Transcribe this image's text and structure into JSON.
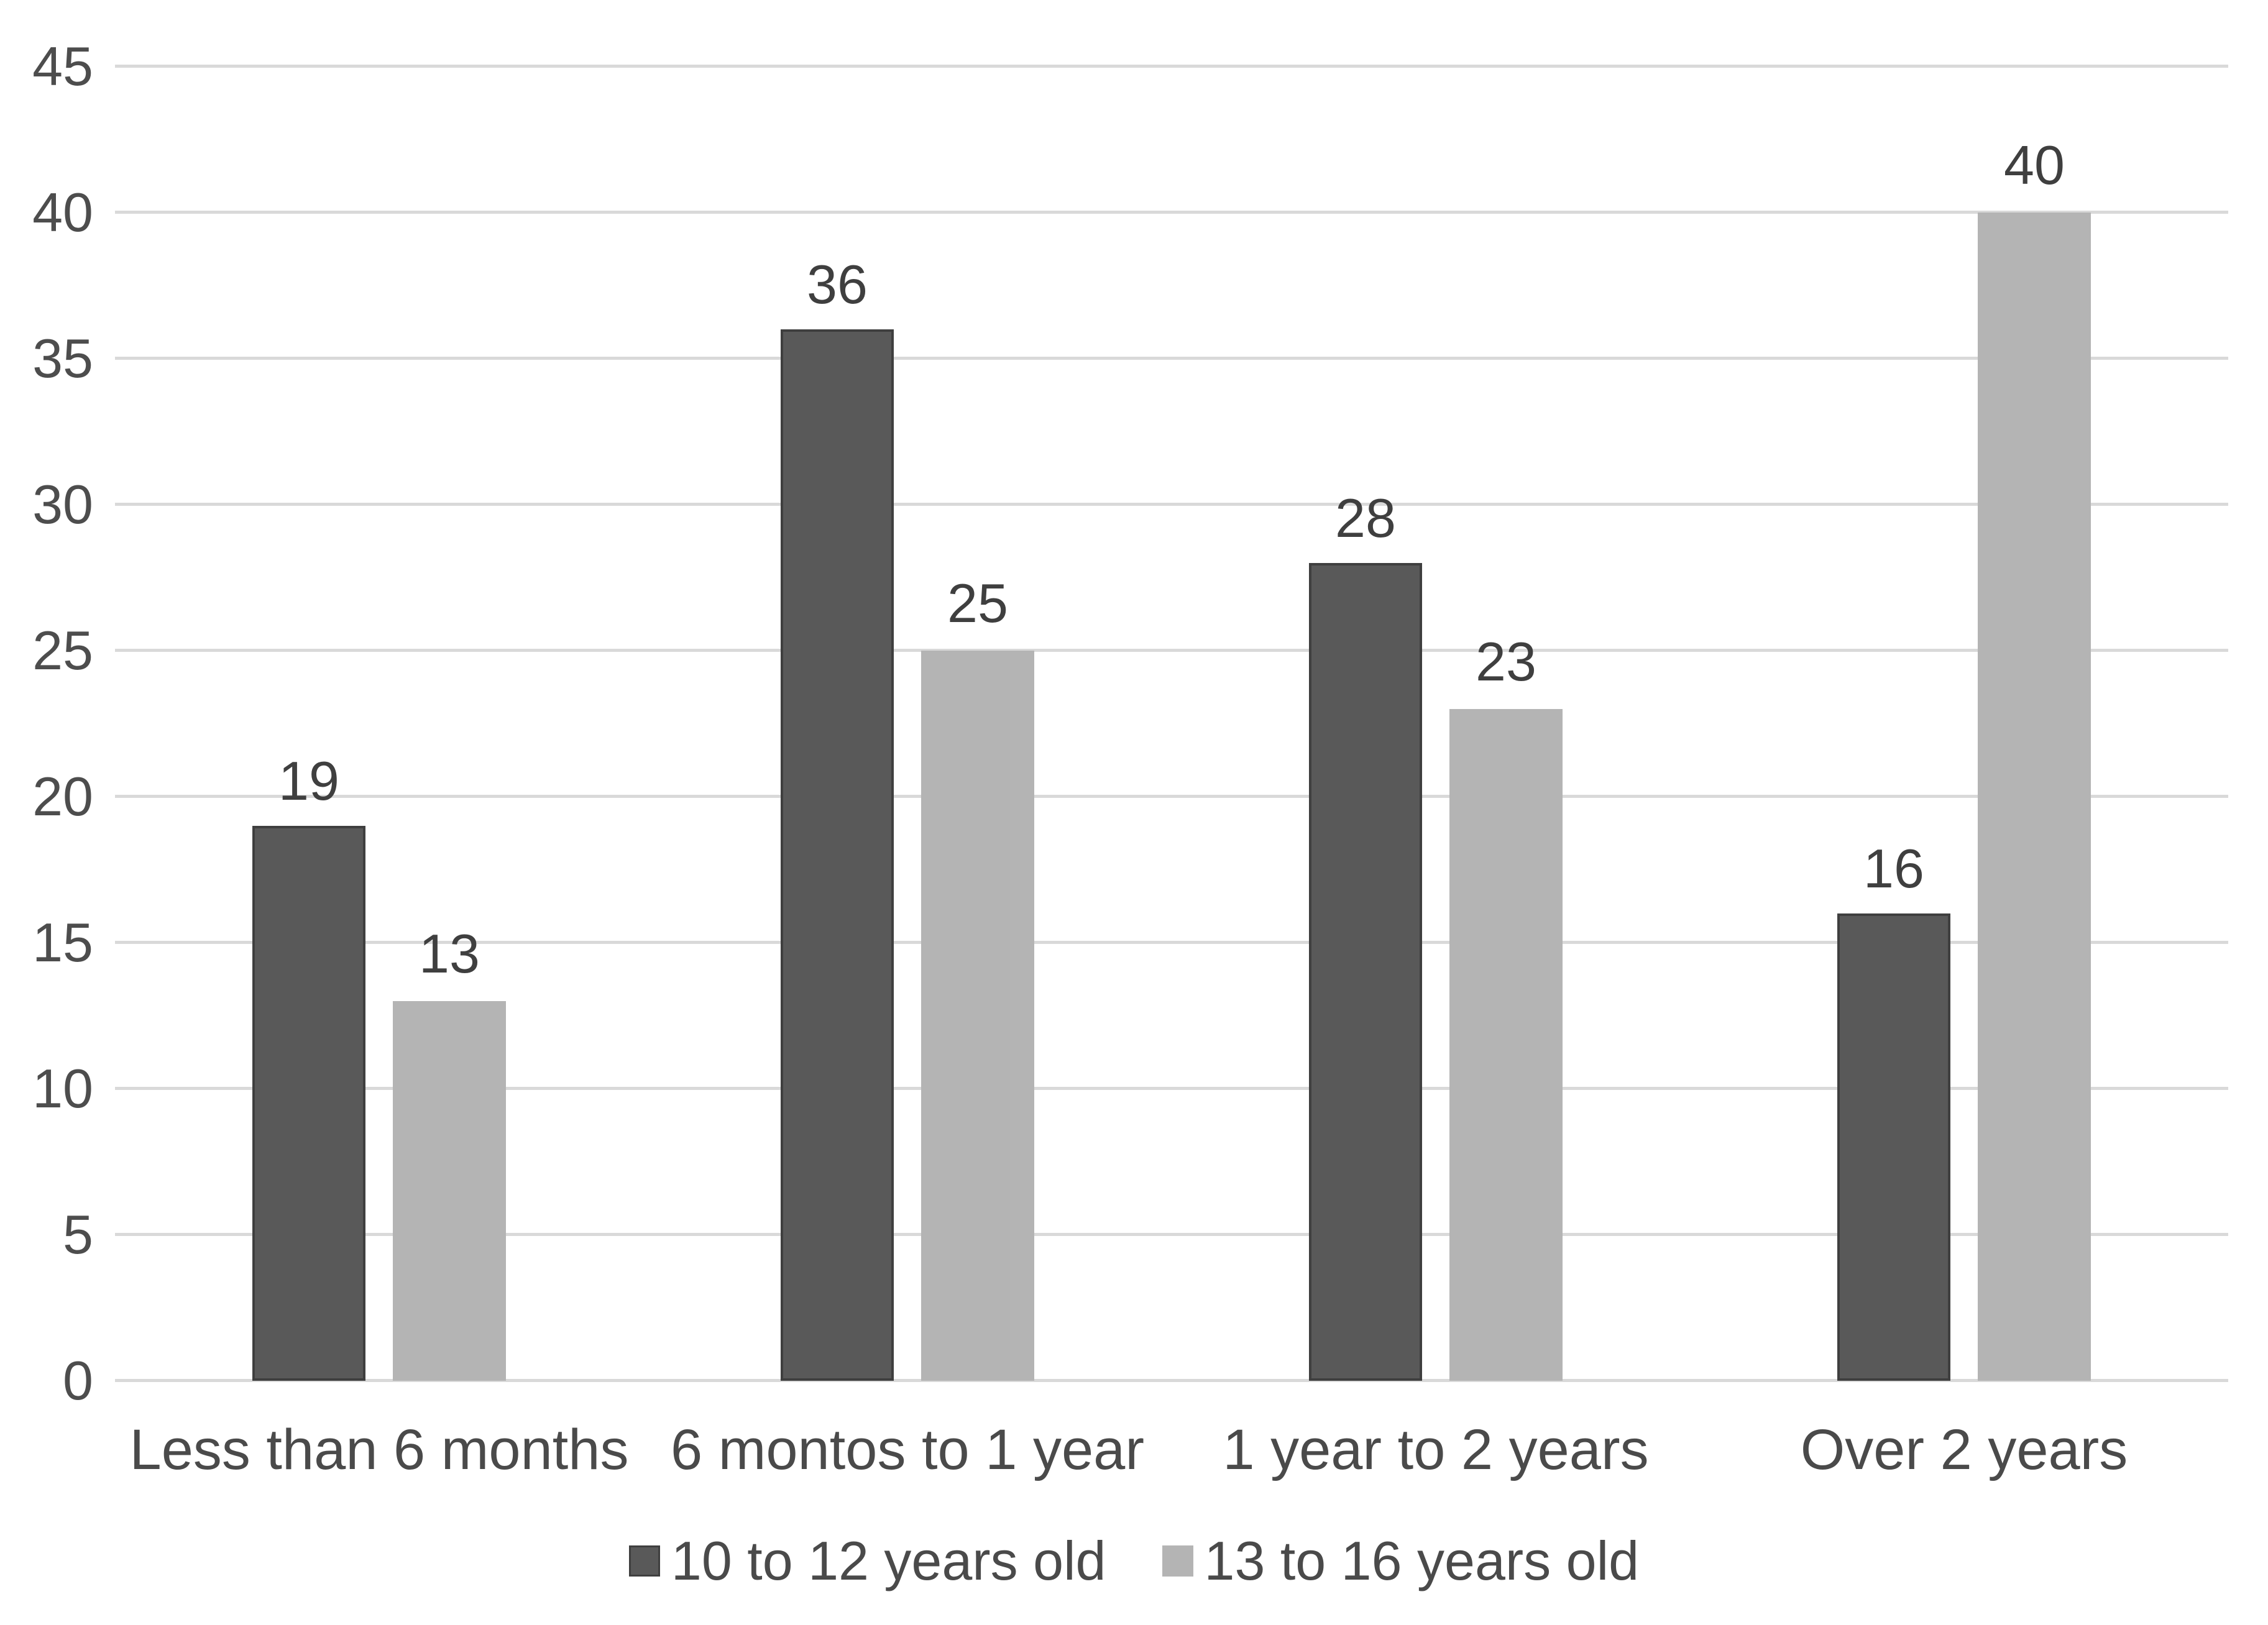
{
  "chart_data": {
    "type": "bar",
    "title": "",
    "xlabel": "",
    "ylabel": "",
    "categories": [
      "Less than 6 months",
      "6 montos to 1 year",
      "1 year to 2 years",
      "Over 2 years"
    ],
    "series": [
      {
        "name": "10 to 12 years old",
        "color": "#595959",
        "border_color": "#3f3f3f",
        "values": [
          19,
          36,
          28,
          16
        ]
      },
      {
        "name": "13 to 16 years old",
        "color": "#b4b4b4",
        "border_color": "",
        "values": [
          13,
          25,
          23,
          40
        ]
      }
    ],
    "ylim": [
      0,
      45
    ],
    "ytick_step": 5,
    "yticks": [
      0,
      5,
      10,
      15,
      20,
      25,
      30,
      35,
      40,
      45
    ],
    "grid": true,
    "gridline_color": "#d9d9d9",
    "background": "#ffffff",
    "text_color": "#4a4a4a",
    "legend_position": "bottom",
    "data_labels": true
  }
}
